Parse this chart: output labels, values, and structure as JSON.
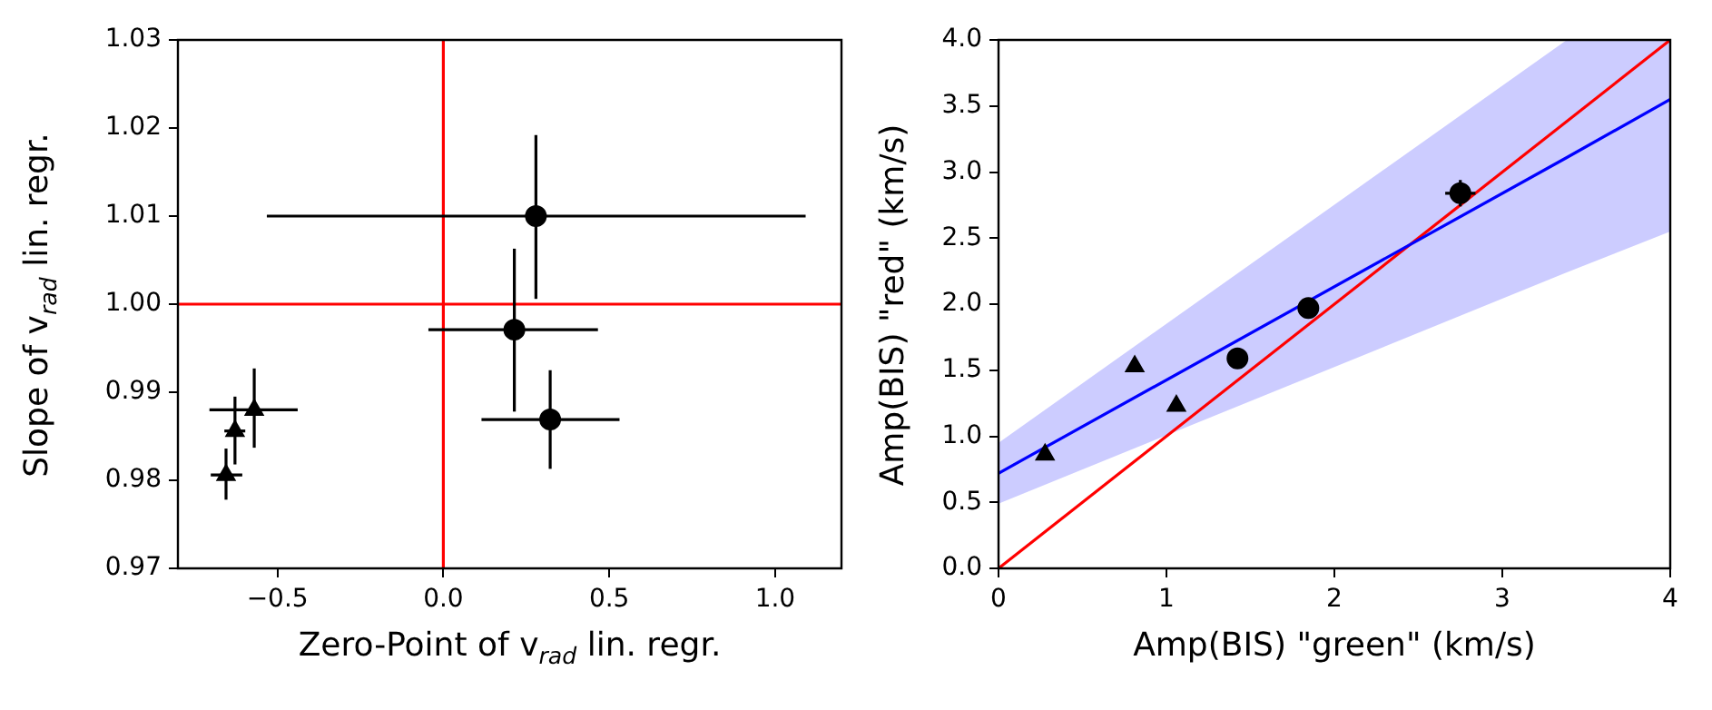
{
  "chart_data": [
    {
      "type": "scatter",
      "xlabel": "Zero-Point of v$_{rad}$ lin. regr.",
      "ylabel": "Slope of v$_{rad}$ lin. regr.",
      "xlim": [
        -0.8,
        1.2
      ],
      "xticks": [
        {
          "value": -0.5,
          "label": "−0.5"
        },
        {
          "value": 0,
          "label": "0.0"
        },
        {
          "value": 0.5,
          "label": "0.5"
        },
        {
          "value": 1,
          "label": "1.0"
        }
      ],
      "ylim": [
        0.97,
        1.03
      ],
      "yticks": [
        {
          "value": 0.97,
          "label": "0.97"
        },
        {
          "value": 0.98,
          "label": "0.98"
        },
        {
          "value": 0.99,
          "label": "0.99"
        },
        {
          "value": 1,
          "label": "1.00"
        },
        {
          "value": 1.01,
          "label": "1.01"
        },
        {
          "value": 1.02,
          "label": "1.02"
        },
        {
          "value": 1.03,
          "label": "1.03"
        }
      ],
      "ref_lines": [
        {
          "axis": "x",
          "value": 0,
          "color": "#ff0000"
        },
        {
          "axis": "y",
          "value": 1,
          "color": "#ff0000"
        }
      ],
      "series": [
        {
          "color": "#000000",
          "marker": "circle",
          "x": [
            0.279,
            0.214,
            0.322
          ],
          "values": [
            1.01,
            0.9971,
            0.9869
          ],
          "xerrors": [
            [
              -0.532,
              1.092
            ],
            [
              -0.045,
              0.466
            ],
            [
              0.115,
              0.531
            ]
          ],
          "errors": [
            [
              1.0006,
              1.0192
            ],
            [
              0.9878,
              1.0063
            ],
            [
              0.9813,
              0.9925
            ]
          ]
        },
        {
          "color": "#000000",
          "marker": "triangle",
          "x": [
            -0.57,
            -0.628,
            -0.655
          ],
          "values": [
            0.988,
            0.9856,
            0.9806
          ],
          "xerrors": [
            [
              -0.705,
              -0.439
            ],
            [
              -0.66,
              -0.597
            ],
            [
              -0.701,
              -0.606
            ]
          ],
          "errors": [
            [
              0.9837,
              0.9927
            ],
            [
              0.9818,
              0.9895
            ],
            [
              0.9778,
              0.9836
            ]
          ]
        }
      ]
    },
    {
      "type": "scatter",
      "xlabel": "Amp(BIS) \"green\" (km/s)",
      "ylabel": "Amp(BIS) \"red\" (km/s)",
      "xlim": [
        0,
        4
      ],
      "xticks": [
        0,
        1,
        2,
        3,
        4
      ],
      "ylim": [
        0,
        4
      ],
      "yticks": [
        {
          "value": 0,
          "label": "0.0"
        },
        {
          "value": 0.5,
          "label": "0.5"
        },
        {
          "value": 1,
          "label": "1.0"
        },
        {
          "value": 1.5,
          "label": "1.5"
        },
        {
          "value": 2,
          "label": "2.0"
        },
        {
          "value": 2.5,
          "label": "2.5"
        },
        {
          "value": 3,
          "label": "3.0"
        },
        {
          "value": 3.5,
          "label": "3.5"
        },
        {
          "value": 4,
          "label": "4.0"
        }
      ],
      "series": [
        {
          "type": "line",
          "color": "#0000ff",
          "x": [
            0,
            3.384,
            4
          ],
          "values": [
            0.72,
            3.11,
            3.55
          ],
          "lower": [
            0.49,
            2.24,
            2.55
          ],
          "upper": [
            0.95,
            4.0,
            4.0
          ]
        },
        {
          "type": "line",
          "color": "#ff0000",
          "x": [
            0,
            4
          ],
          "values": [
            0,
            4
          ]
        },
        {
          "color": "#000000",
          "marker": "triangle",
          "x": [
            0.277,
            0.811,
            1.059
          ],
          "values": [
            0.86,
            1.53,
            1.23
          ]
        },
        {
          "color": "#000000",
          "marker": "circle",
          "x": [
            1.423,
            1.845,
            2.75
          ],
          "values": [
            1.59,
            1.97,
            2.84
          ],
          "xerrors": [
            null,
            null,
            0.09
          ],
          "errors": [
            null,
            null,
            0.1
          ]
        }
      ]
    }
  ]
}
